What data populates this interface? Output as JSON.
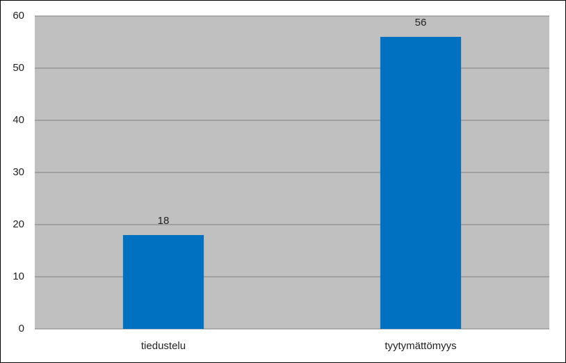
{
  "chart_data": {
    "type": "bar",
    "categories": [
      "tiedustelu",
      "tyytymättömyys"
    ],
    "values": [
      18,
      56
    ],
    "color": "#0070c0",
    "ylim": [
      0,
      60
    ],
    "yticks": [
      0,
      10,
      20,
      30,
      40,
      50,
      60
    ],
    "grid": true,
    "show_value_labels": true,
    "plot_background": "#c0c0c0"
  }
}
